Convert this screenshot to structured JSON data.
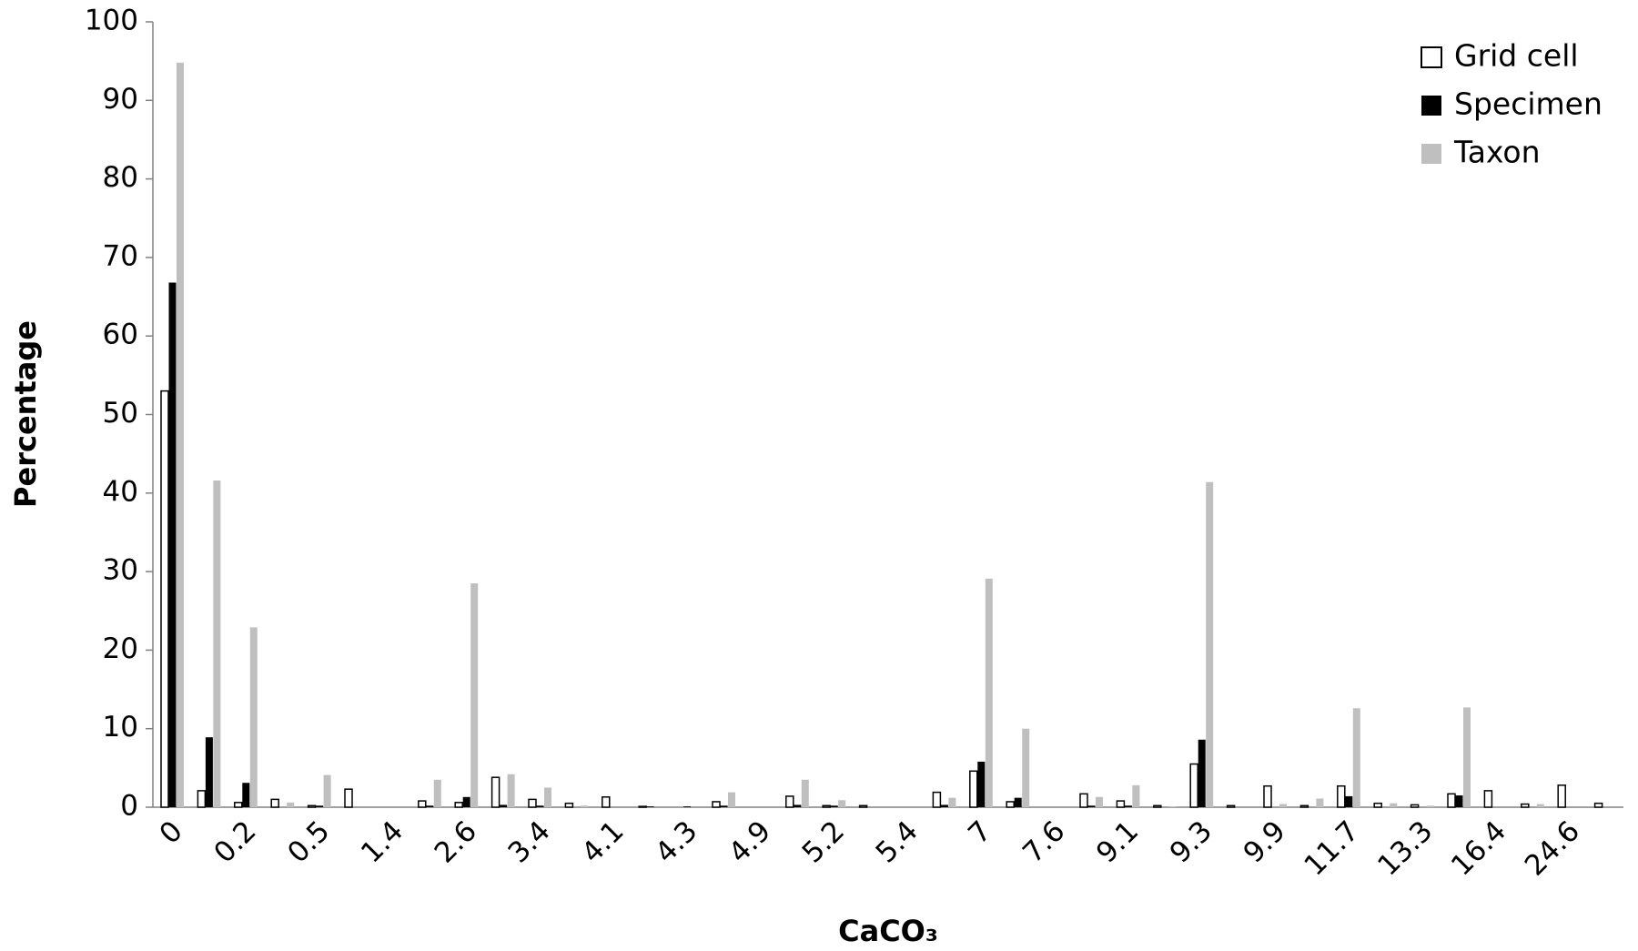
{
  "chart_data": {
    "type": "bar",
    "x_label": "CaCO₃",
    "y_label": "Percentage",
    "categories": [
      "0",
      null,
      "0.2",
      null,
      "0.5",
      null,
      "1.4",
      null,
      "2.6",
      null,
      "3.4",
      null,
      "4.1",
      null,
      "4.3",
      null,
      "4.9",
      null,
      "5.2",
      null,
      "5.4",
      null,
      "7",
      null,
      "7.6",
      null,
      "9.1",
      null,
      "9.3",
      null,
      "9.9",
      null,
      "11.7",
      null,
      "13.3",
      null,
      "16.4",
      null,
      "24.6",
      null
    ],
    "series": [
      {
        "name": "Grid cell",
        "color": "#ffffff",
        "values": [
          53,
          2.1,
          0.6,
          1.0,
          0.2,
          2.3,
          0,
          0.8,
          0.6,
          3.8,
          1.0,
          0.5,
          1.3,
          0.1,
          0,
          0.7,
          0,
          1.4,
          0.2,
          0.2,
          0,
          1.9,
          4.6,
          0.7,
          0,
          1.7,
          0.8,
          0.2,
          5.5,
          0.2,
          2.7,
          0.2,
          2.7,
          0.5,
          0.3,
          1.7,
          2.1,
          0.4,
          2.8,
          0.5
        ]
      },
      {
        "name": "Specimen",
        "color": "#000000",
        "values": [
          66.8,
          8.9,
          3.1,
          0,
          0.2,
          0,
          0,
          0.2,
          1.3,
          0.3,
          0.2,
          0,
          0,
          0.1,
          0.1,
          0.2,
          0,
          0.3,
          0.2,
          0,
          0,
          0.3,
          5.8,
          1.2,
          0,
          0.2,
          0.2,
          0,
          8.6,
          0,
          0,
          0,
          1.4,
          0,
          0,
          1.5,
          0,
          0,
          0,
          0
        ]
      },
      {
        "name": "Taxon",
        "color": "#bfbfbf",
        "values": [
          94.8,
          41.6,
          22.9,
          0.6,
          4.1,
          0,
          0,
          3.5,
          28.5,
          4.2,
          2.5,
          0.2,
          0,
          0,
          0,
          1.9,
          0,
          3.5,
          0.9,
          0,
          0,
          1.2,
          29.1,
          10.0,
          0,
          1.3,
          2.8,
          0.1,
          41.4,
          0,
          0.4,
          1.1,
          12.6,
          0.5,
          0.2,
          12.7,
          0,
          0.4,
          0,
          0
        ]
      }
    ],
    "ylim": [
      0,
      100
    ],
    "yticks": [
      0,
      10,
      20,
      30,
      40,
      50,
      60,
      70,
      80,
      90,
      100
    ],
    "legend": "top-right"
  }
}
